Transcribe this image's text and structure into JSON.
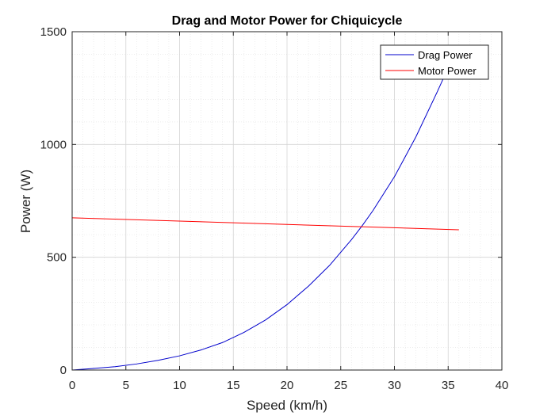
{
  "chart_data": {
    "type": "line",
    "title": "Drag and Motor Power for Chiquicycle",
    "xlabel": "Speed (km/h)",
    "ylabel": "Power (W)",
    "xlim": [
      0,
      40
    ],
    "ylim": [
      0,
      1500
    ],
    "xticks": [
      0,
      5,
      10,
      15,
      20,
      25,
      30,
      35,
      40
    ],
    "yticks": [
      0,
      500,
      1000,
      1500
    ],
    "grid": true,
    "minor_grid": true,
    "legend_position": "top-right",
    "series": [
      {
        "name": "Drag Power",
        "color": "#0000cc",
        "x": [
          0,
          2,
          4,
          6,
          8,
          10,
          12,
          14,
          16,
          18,
          20,
          22,
          24,
          26,
          27,
          28,
          30,
          32,
          34,
          35,
          35.5
        ],
        "y": [
          0,
          7,
          15,
          27,
          43,
          63,
          89,
          122,
          167,
          222,
          290,
          372,
          466,
          578,
          640,
          707,
          857,
          1034,
          1235,
          1340,
          1400
        ]
      },
      {
        "name": "Motor Power",
        "color": "#ff0000",
        "x": [
          0,
          36
        ],
        "y": [
          675,
          622
        ]
      }
    ]
  }
}
